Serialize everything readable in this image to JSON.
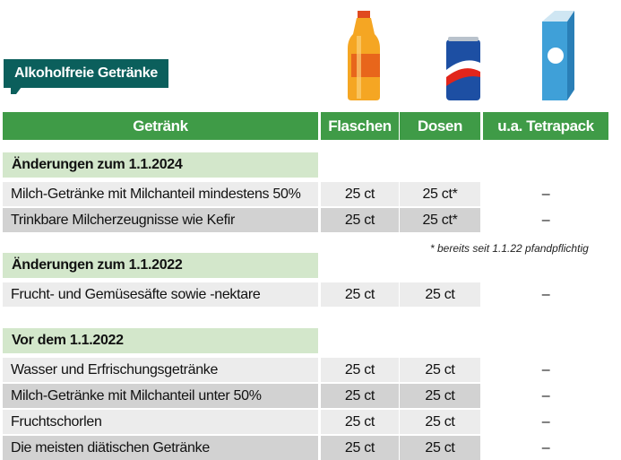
{
  "badge": "Alkoholfreie Getränke",
  "header": [
    "Getränk",
    "Flaschen",
    "Dosen",
    "u.a. Tetrapack"
  ],
  "sections": [
    {
      "title": "Änderungen zum 1.1.2024",
      "rows": [
        [
          "Milch-Getränke mit Milchanteil mindestens 50%",
          "25 ct",
          "25 ct*",
          "–"
        ],
        [
          "Trinkbare Milcherzeugnisse wie Kefir",
          "25 ct",
          "25 ct*",
          "–"
        ]
      ]
    },
    {
      "title": "Änderungen zum 1.1.2022",
      "rows": [
        [
          "Frucht- und Gemüsesäfte sowie -nektare",
          "25 ct",
          "25 ct",
          "–"
        ]
      ]
    },
    {
      "title": "Vor dem 1.1.2022",
      "rows": [
        [
          "Wasser und Erfrischungsgetränke",
          "25 ct",
          "25 ct",
          "–"
        ],
        [
          "Milch-Getränke mit Milchanteil unter 50%",
          "25 ct",
          "25 ct",
          "–"
        ],
        [
          "Fruchtschorlen",
          "25 ct",
          "25 ct",
          "–"
        ],
        [
          "Die meisten diätischen Getränke",
          "25 ct",
          "25 ct",
          "–"
        ]
      ]
    }
  ],
  "footnote": "* bereits seit 1.1.22 pfandpflichtig"
}
